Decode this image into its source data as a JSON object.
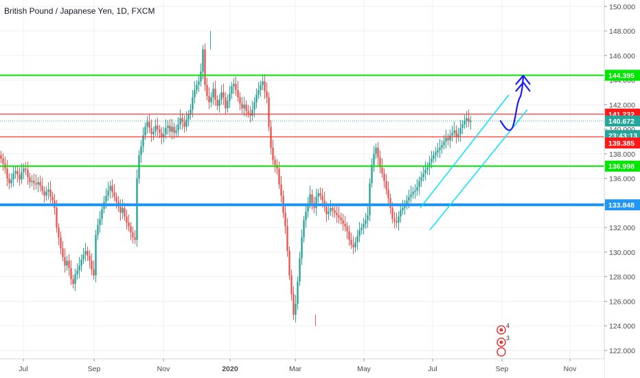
{
  "header": {
    "title": "British Pound / Japanese Yen, 1D, FXCM"
  },
  "colors": {
    "up": "#26a69a",
    "down": "#ef5350",
    "grid": "#eef0f3",
    "axis_text": "#4a4a4a",
    "green_level": "#00e600",
    "red_level": "#ff1a1a",
    "blue_level": "#2196f3",
    "channel": "#00e5ff",
    "projection": "#1a1aff"
  },
  "chart_data": {
    "type": "candlestick",
    "title": "British Pound / Japanese Yen, 1D, FXCM",
    "x_ticks": [
      "Jul",
      "Sep",
      "Nov",
      "2020",
      "Mar",
      "May",
      "Jul",
      "Sep",
      "Nov"
    ],
    "y_ticks": [
      150,
      148,
      146,
      144,
      142,
      140,
      138,
      136,
      134,
      132,
      130,
      128,
      126,
      124,
      122
    ],
    "ylim": [
      121.6,
      150.8
    ],
    "grid": true,
    "series": {
      "date_index_x": [
        0,
        3,
        6,
        9,
        12,
        15,
        18,
        21,
        24,
        27,
        30,
        33,
        36,
        39,
        42,
        45,
        48,
        51,
        54,
        57,
        60,
        63,
        66,
        69,
        72,
        75,
        78,
        81,
        84,
        87,
        90,
        93,
        96,
        99,
        102,
        105,
        108,
        111,
        114,
        117,
        120,
        123,
        126,
        129,
        132,
        135,
        138,
        141,
        144,
        147,
        150,
        153,
        156,
        159,
        162,
        165,
        168,
        171,
        174,
        177,
        180,
        183,
        186,
        189,
        192,
        195,
        198,
        201,
        204,
        207,
        210,
        213,
        216,
        219,
        222,
        225,
        228,
        231,
        234,
        237,
        240,
        243,
        246,
        249,
        252,
        255,
        258,
        261,
        264,
        267,
        270,
        273,
        276,
        279,
        282,
        285,
        288,
        291,
        294,
        297,
        300,
        303,
        306,
        309,
        312,
        315,
        318,
        321,
        324,
        327,
        330,
        333,
        336,
        339,
        342,
        345,
        348,
        351,
        354,
        357,
        360,
        363,
        366,
        369,
        372,
        375,
        378,
        381,
        384,
        387,
        390,
        393,
        396,
        399,
        402,
        405,
        408,
        411,
        414,
        417,
        420,
        423,
        426,
        429,
        432,
        435,
        438,
        441,
        444,
        447,
        450,
        453,
        456,
        459,
        462,
        465,
        468,
        471,
        474,
        477,
        480,
        483,
        486,
        489,
        492,
        495,
        498,
        501,
        504,
        507,
        510,
        513,
        516,
        519,
        522,
        525,
        528,
        531,
        534,
        537,
        540,
        543,
        546,
        549,
        552,
        555,
        558,
        561,
        564,
        567,
        570,
        573,
        576,
        579,
        582,
        585,
        588,
        591,
        594,
        597,
        600,
        603,
        606,
        609,
        612,
        615,
        618,
        621,
        624,
        627,
        630,
        633,
        636,
        639,
        642,
        645,
        648,
        651,
        654,
        657,
        660,
        663,
        666,
        669,
        672,
        675,
        678,
        681,
        684,
        687,
        690,
        693,
        696,
        699,
        702,
        705,
        708,
        711,
        714,
        717,
        720,
        723,
        726
      ],
      "close": [
        137.6,
        137.2,
        136.8,
        136.0,
        135.6,
        135.9,
        136.4,
        136.6,
        136.3,
        135.9,
        136.5,
        136.8,
        136.7,
        136.1,
        135.7,
        135.8,
        135.6,
        135.5,
        135.7,
        135.4,
        135.0,
        134.6,
        134.9,
        135.1,
        134.5,
        134.2,
        133.6,
        132.0,
        131.2,
        130.3,
        129.6,
        128.9,
        129.3,
        128.7,
        127.8,
        127.4,
        128.2,
        128.5,
        128.9,
        129.4,
        129.8,
        130.1,
        129.7,
        129.3,
        128.6,
        128.1,
        131.4,
        132.2,
        132.7,
        133.5,
        134.1,
        134.6,
        135.0,
        135.4,
        134.9,
        134.5,
        134.1,
        133.7,
        133.2,
        133.6,
        132.9,
        132.4,
        132.1,
        131.6,
        131.2,
        131.0,
        136.0,
        137.9,
        138.6,
        139.5,
        140.2,
        140.6,
        140.1,
        139.6,
        139.8,
        140.3,
        140.0,
        139.7,
        139.4,
        139.6,
        140.1,
        140.3,
        139.8,
        140.2,
        139.7,
        139.9,
        140.4,
        140.9,
        140.6,
        140.2,
        140.8,
        141.2,
        141.6,
        142.6,
        143.2,
        143.6,
        143.9,
        144.7,
        146.5,
        143.6,
        142.7,
        142.2,
        142.6,
        143.3,
        142.4,
        141.9,
        142.4,
        143.0,
        142.6,
        141.7,
        142.3,
        142.9,
        143.5,
        143.7,
        143.2,
        142.6,
        142.1,
        141.7,
        142.0,
        141.5,
        141.3,
        141.1,
        141.6,
        142.2,
        142.8,
        143.2,
        143.6,
        143.9,
        143.1,
        142.6,
        140.2,
        138.5,
        137.5,
        137.1,
        136.8,
        135.5,
        134.6,
        133.2,
        132.1,
        130.1,
        128.1,
        126.6,
        124.9,
        125.8,
        127.6,
        129.5,
        131.2,
        132.6,
        133.3,
        133.9,
        134.7,
        134.0,
        133.6,
        134.5,
        134.8,
        134.6,
        134.2,
        133.7,
        133.1,
        133.3,
        133.6,
        133.4,
        133.2,
        133.0,
        132.8,
        132.6,
        132.3,
        132.1,
        131.7,
        131.0,
        130.6,
        130.4,
        130.8,
        131.3,
        131.8,
        132.0,
        132.3,
        132.6,
        133.0,
        135.6,
        137.1,
        138.0,
        138.5,
        137.7,
        136.9,
        136.4,
        135.8,
        135.1,
        134.4,
        133.6,
        132.7,
        132.5,
        132.4,
        132.9,
        133.4,
        133.6,
        133.9,
        134.2,
        134.5,
        134.7,
        134.9,
        135.0,
        135.3,
        135.8,
        136.1,
        136.4,
        136.7,
        136.9,
        137.3,
        137.6,
        137.9,
        138.1,
        138.3,
        138.5,
        138.7,
        139.0,
        139.3,
        139.1,
        139.5,
        139.7,
        139.9,
        139.4,
        139.6,
        140.1,
        140.4,
        140.7,
        140.9,
        140.6,
        140.67
      ]
    },
    "levels": [
      {
        "name": "upper-green",
        "value": 144.395,
        "label": "144.395"
      },
      {
        "name": "red-top",
        "value": 141.232,
        "label": "141.232"
      },
      {
        "name": "last-price",
        "value": 140.672,
        "label": "140.672"
      },
      {
        "name": "countdown",
        "value": 139.99,
        "label": "23:43:13"
      },
      {
        "name": "red-lower",
        "value": 139.385,
        "label": "139.385"
      },
      {
        "name": "lower-green",
        "value": 136.998,
        "label": "136.998"
      },
      {
        "name": "blue-support",
        "value": 133.848,
        "label": "133.848"
      }
    ],
    "annotations": {
      "event_badge_top": "4",
      "event_badge_bottom": "3"
    }
  }
}
